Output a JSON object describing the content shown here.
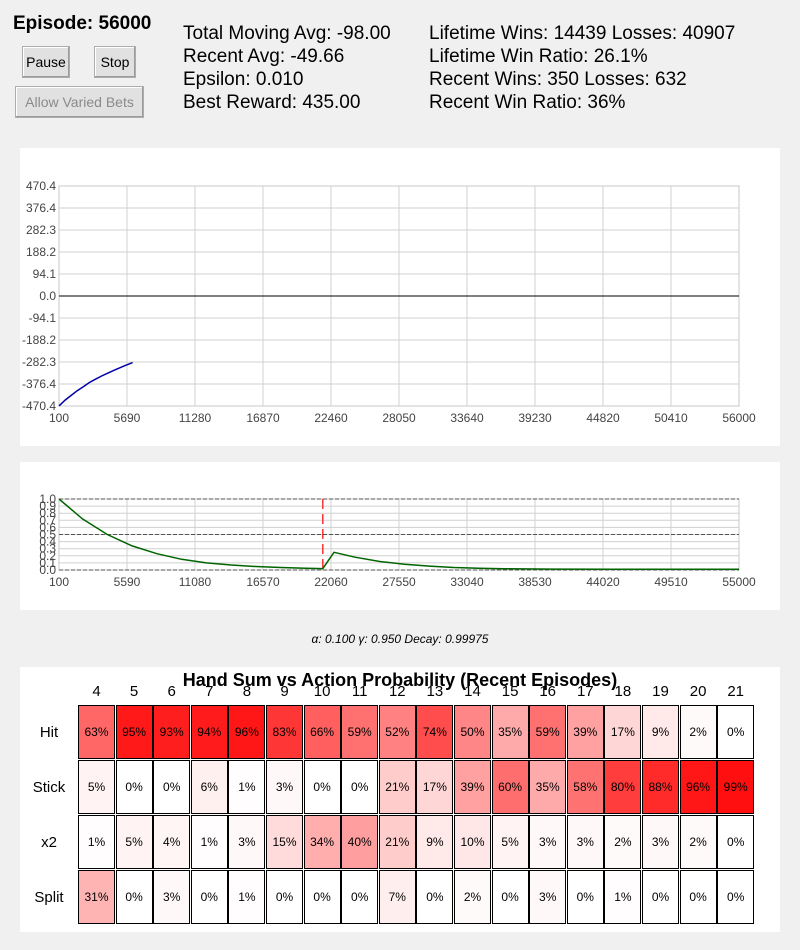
{
  "header": {
    "episode": "Episode: 56000",
    "pause_label": "Pause",
    "stop_label": "Stop",
    "varied_bets_label": "Allow Varied Bets"
  },
  "stats": {
    "total_moving_avg": "Total Moving Avg: -98.00",
    "recent_avg": "Recent Avg: -49.66",
    "epsilon": "Epsilon: 0.010",
    "best_reward": "Best Reward: 435.00",
    "lifetime_wins": "Lifetime Wins: 14439  Losses: 40907",
    "lifetime_ratio": "Lifetime Win Ratio: 26.1%",
    "recent_wins": "Recent Wins: 350  Losses: 632",
    "recent_ratio": "Recent Win Ratio: 36%"
  },
  "chart_data": [
    {
      "type": "line",
      "x_ticks": [
        "100",
        "5690",
        "11280",
        "16870",
        "22460",
        "28050",
        "33640",
        "39230",
        "44820",
        "50410",
        "56000"
      ],
      "y_ticks": [
        "470.4",
        "376.4",
        "282.3",
        "188.2",
        "94.1",
        "0.0",
        "-94.1",
        "-188.2",
        "-282.3",
        "-376.4",
        "-470.4"
      ],
      "xlim": [
        100,
        56000
      ],
      "ylim": [
        -470.4,
        470.4
      ],
      "grid": true,
      "zero_line": 0,
      "line_color": "#0000aa",
      "series": [
        {
          "x": [
            100,
            600,
            1100,
            1600,
            2100,
            2600,
            3100,
            3600,
            4100,
            4600,
            5100,
            5600,
            6150
          ],
          "values": [
            -470,
            -445,
            -425,
            -405,
            -388,
            -370,
            -356,
            -342,
            -330,
            -318,
            -307,
            -296,
            -285
          ]
        }
      ]
    },
    {
      "type": "line",
      "x_ticks": [
        "100",
        "5590",
        "11080",
        "16570",
        "22060",
        "27550",
        "33040",
        "38530",
        "44020",
        "49510",
        "55000"
      ],
      "y_ticks": [
        "1.0",
        "0.9",
        "0.8",
        "0.7",
        "0.6",
        "0.5",
        "0.4",
        "0.3",
        "0.2",
        "0.1",
        "0.0"
      ],
      "xlim": [
        100,
        55000
      ],
      "ylim": [
        0,
        1.0
      ],
      "grid": true,
      "dashed_lines": [
        1.0,
        0.5,
        0.0
      ],
      "marker_x": 21400,
      "marker_color": "#ff0000",
      "line_color": "#006400",
      "series": [
        {
          "x": [
            100,
            2000,
            4000,
            6000,
            8000,
            10000,
            12000,
            14000,
            16000,
            18000,
            20000,
            21400,
            22300,
            24000,
            26000,
            28000,
            30000,
            32000,
            34000,
            36000,
            40000,
            45000,
            50000,
            55000
          ],
          "values": [
            1.0,
            0.72,
            0.5,
            0.34,
            0.23,
            0.15,
            0.1,
            0.07,
            0.05,
            0.035,
            0.025,
            0.02,
            0.25,
            0.18,
            0.12,
            0.08,
            0.055,
            0.035,
            0.025,
            0.018,
            0.012,
            0.01,
            0.01,
            0.01
          ]
        }
      ]
    },
    {
      "type": "heatmap",
      "title": "Hand Sum vs Action Probability (Recent Episodes)",
      "columns": [
        "4",
        "5",
        "6",
        "7",
        "8",
        "9",
        "10",
        "11",
        "12",
        "13",
        "14",
        "15",
        "16",
        "17",
        "18",
        "19",
        "20",
        "21"
      ],
      "rows": [
        "Hit",
        "Stick",
        "x2",
        "Split"
      ],
      "values": [
        [
          63,
          95,
          93,
          94,
          96,
          83,
          66,
          59,
          52,
          74,
          50,
          35,
          59,
          39,
          17,
          9,
          2,
          0
        ],
        [
          5,
          0,
          0,
          6,
          1,
          3,
          0,
          0,
          21,
          17,
          39,
          60,
          35,
          58,
          80,
          88,
          96,
          99
        ],
        [
          1,
          5,
          4,
          1,
          3,
          15,
          34,
          40,
          21,
          9,
          10,
          5,
          3,
          3,
          2,
          3,
          2,
          0
        ],
        [
          31,
          0,
          3,
          0,
          1,
          0,
          0,
          0,
          7,
          0,
          2,
          0,
          3,
          0,
          1,
          0,
          0,
          0
        ]
      ]
    }
  ],
  "params": "α: 0.100  γ: 0.950  Decay: 0.99975"
}
